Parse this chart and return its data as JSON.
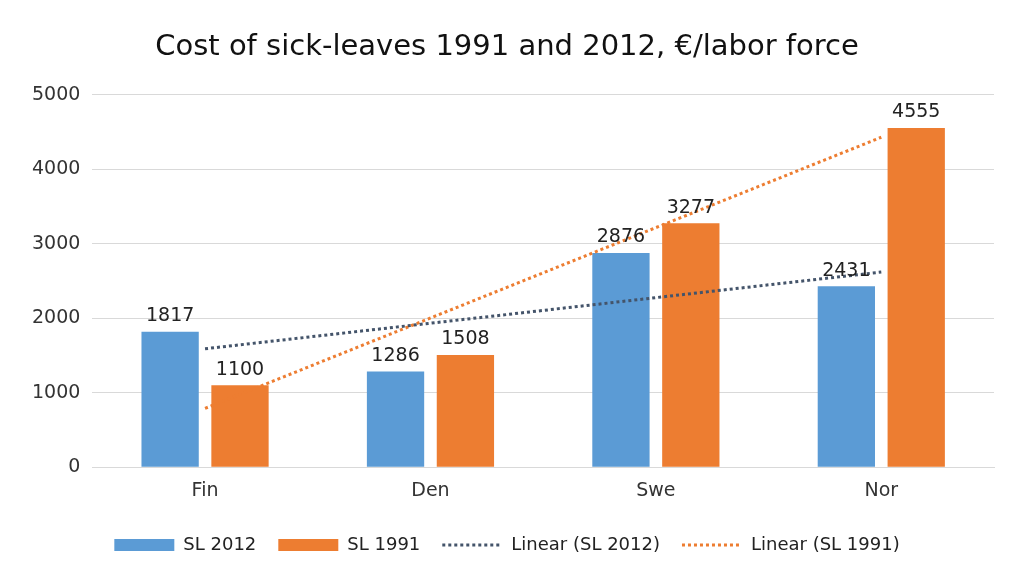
{
  "chart_data": {
    "type": "bar",
    "title": "Cost of sick-leaves 1991 and 2012, €/labor force",
    "categories": [
      "Fin",
      "Den",
      "Swe",
      "Nor"
    ],
    "series": [
      {
        "name": "SL 2012",
        "color": "#5b9bd5",
        "values": [
          1817,
          1286,
          2876,
          2431
        ],
        "value_labels": [
          "1817",
          "1286",
          "2876",
          "2431"
        ]
      },
      {
        "name": "SL 1991",
        "color": "#ed7d31",
        "values": [
          1100,
          1508,
          3277,
          4555
        ],
        "value_labels": [
          "1100",
          "1508",
          "3277",
          "4555"
        ]
      },
      {
        "name": "Linear (SL 2012)",
        "type": "line",
        "color": "#44546a",
        "line_style": "dotted",
        "x": [
          "Fin",
          "Nor"
        ],
        "values": [
          1590,
          2620
        ]
      },
      {
        "name": "Linear (SL 1991)",
        "type": "line",
        "color": "#ed7d31",
        "line_style": "dotted",
        "x": [
          "Fin",
          "Nor"
        ],
        "values": [
          790,
          4430
        ]
      }
    ],
    "ylim": [
      0,
      5000
    ],
    "yticks": [
      0,
      1000,
      2000,
      3000,
      4000,
      5000
    ],
    "grid": "y",
    "legend": "bottom",
    "marker": "none"
  }
}
